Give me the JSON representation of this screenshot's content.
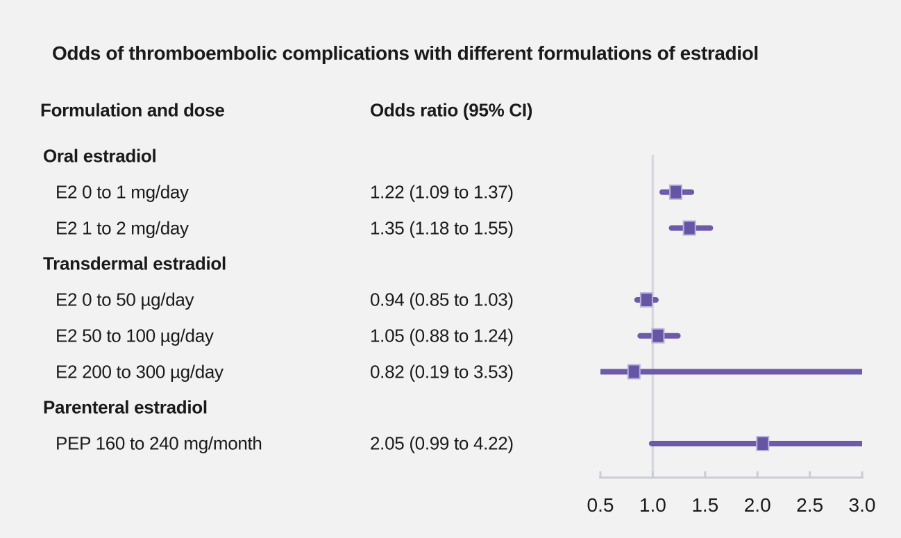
{
  "title": "Odds of thromboembolic complications with different formulations of estradiol",
  "columns": {
    "formulation": "Formulation and dose",
    "odds": "Odds ratio (95% CI)"
  },
  "colors": {
    "background": "#f2f2f2",
    "text": "#1a1a1a",
    "ci_line": "#6e5aa8",
    "marker_fill": "#6456a4",
    "marker_border": "#b9b0d8",
    "reference_line": "#d5d9e0",
    "axis": "#c9cdd7"
  },
  "chart_data": {
    "type": "forest",
    "title": "Odds of thromboembolic complications with different formulations of estradiol",
    "xlabel": "Odds ratio",
    "xlim": [
      0.5,
      3.0
    ],
    "reference_line": 1.0,
    "tick_values": [
      0.5,
      1.0,
      1.5,
      2.0,
      2.5,
      3.0
    ],
    "tick_labels": [
      "0.5",
      "1.0",
      "1.5",
      "2.0",
      "2.5",
      "3.0"
    ],
    "grid": false,
    "rows": [
      {
        "kind": "group",
        "label": "Oral estradiol"
      },
      {
        "kind": "item",
        "label": "E2 0 to 1 mg/day",
        "ci_text": "1.22 (1.09 to 1.37)",
        "est": 1.22,
        "lo": 1.09,
        "hi": 1.37
      },
      {
        "kind": "item",
        "label": "E2 1 to 2 mg/day",
        "ci_text": "1.35 (1.18 to 1.55)",
        "est": 1.35,
        "lo": 1.18,
        "hi": 1.55
      },
      {
        "kind": "group",
        "label": "Transdermal estradiol"
      },
      {
        "kind": "item",
        "label": "E2 0 to 50 µg/day",
        "ci_text": "0.94 (0.85 to 1.03)",
        "est": 0.94,
        "lo": 0.85,
        "hi": 1.03
      },
      {
        "kind": "item",
        "label": "E2 50 to 100 µg/day",
        "ci_text": "1.05 (0.88 to 1.24)",
        "est": 1.05,
        "lo": 0.88,
        "hi": 1.24
      },
      {
        "kind": "item",
        "label": "E2 200 to 300 µg/day",
        "ci_text": "0.82 (0.19 to 3.53)",
        "est": 0.82,
        "lo": 0.19,
        "hi": 3.53
      },
      {
        "kind": "group",
        "label": "Parenteral estradiol"
      },
      {
        "kind": "item",
        "label": "PEP 160 to 240 mg/month",
        "ci_text": "2.05 (0.99 to 4.22)",
        "est": 2.05,
        "lo": 0.99,
        "hi": 4.22
      }
    ]
  }
}
